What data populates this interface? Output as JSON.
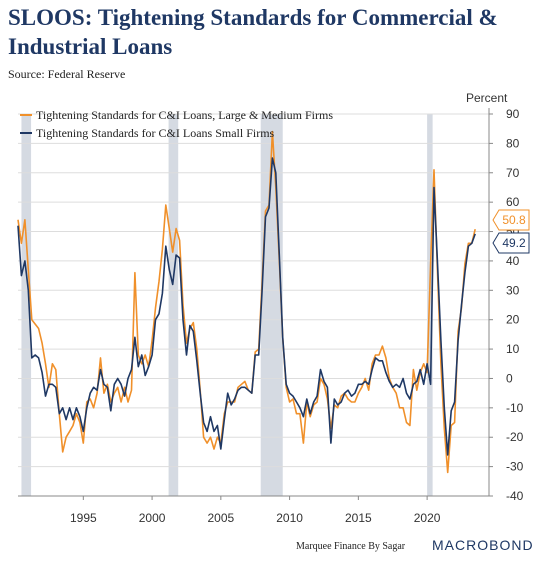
{
  "header": {
    "title": "SLOOS: Tightening Standards for Commercial & Industrial Loans",
    "source": "Source: Federal Reserve",
    "unit": "Percent"
  },
  "footer": {
    "credit": "Marquee Finance By Sagar",
    "brand": "MACROBOND"
  },
  "colors": {
    "large": "#f0902a",
    "small": "#1f3864",
    "recession": "#d5dae2",
    "grid": "#dddddd"
  },
  "chart_data": {
    "type": "line",
    "title": "SLOOS: Tightening Standards for Commercial & Industrial Loans",
    "ylabel": "Percent",
    "ylim": [
      -40,
      90
    ],
    "yticks": [
      90,
      80,
      70,
      60,
      50,
      40,
      30,
      20,
      10,
      0,
      -10,
      -20,
      -30,
      -40
    ],
    "xlim": [
      1990.25,
      2024.5
    ],
    "xticks": [
      1995,
      2000,
      2005,
      2010,
      2015,
      2020
    ],
    "legend": "top-left",
    "recessions": [
      [
        1990.5,
        1991.2
      ],
      [
        2001.2,
        2001.9
      ],
      [
        2007.9,
        2009.5
      ],
      [
        2020.0,
        2020.4
      ]
    ],
    "end_labels": [
      "50.8",
      "49.2"
    ],
    "series": [
      {
        "name": "Tightening Standards for C&I Loans, Large & Medium Firms",
        "color": "#f0902a",
        "points": [
          [
            1990.25,
            54
          ],
          [
            1990.5,
            46
          ],
          [
            1990.75,
            54
          ],
          [
            1991.0,
            37
          ],
          [
            1991.25,
            20
          ],
          [
            1991.75,
            17
          ],
          [
            1992.0,
            12
          ],
          [
            1992.25,
            5
          ],
          [
            1992.5,
            -3
          ],
          [
            1992.75,
            5
          ],
          [
            1993.0,
            3
          ],
          [
            1993.25,
            -12
          ],
          [
            1993.5,
            -25
          ],
          [
            1993.75,
            -20
          ],
          [
            1994.0,
            -18
          ],
          [
            1994.25,
            -16
          ],
          [
            1994.5,
            -12
          ],
          [
            1994.75,
            -15
          ],
          [
            1995.0,
            -22
          ],
          [
            1995.25,
            -8
          ],
          [
            1995.5,
            -7
          ],
          [
            1995.75,
            -10
          ],
          [
            1996.0,
            -5
          ],
          [
            1996.25,
            7
          ],
          [
            1996.5,
            -5
          ],
          [
            1996.75,
            -2
          ],
          [
            1997.0,
            -8
          ],
          [
            1997.25,
            -5
          ],
          [
            1997.5,
            -3
          ],
          [
            1997.75,
            -8
          ],
          [
            1998.0,
            -3
          ],
          [
            1998.25,
            -8
          ],
          [
            1998.5,
            -4
          ],
          [
            1998.75,
            36
          ],
          [
            1999.0,
            8
          ],
          [
            1999.25,
            5
          ],
          [
            1999.5,
            8
          ],
          [
            1999.75,
            4
          ],
          [
            2000.0,
            13
          ],
          [
            2000.25,
            24
          ],
          [
            2000.5,
            33
          ],
          [
            2000.75,
            44
          ],
          [
            2001.0,
            59
          ],
          [
            2001.25,
            51
          ],
          [
            2001.5,
            43
          ],
          [
            2001.75,
            51
          ],
          [
            2002.0,
            47
          ],
          [
            2002.25,
            25
          ],
          [
            2002.5,
            12
          ],
          [
            2002.75,
            17
          ],
          [
            2003.0,
            19
          ],
          [
            2003.25,
            10
          ],
          [
            2003.5,
            -4
          ],
          [
            2003.75,
            -20
          ],
          [
            2004.0,
            -22
          ],
          [
            2004.25,
            -20
          ],
          [
            2004.5,
            -24
          ],
          [
            2004.75,
            -20
          ],
          [
            2005.0,
            -22
          ],
          [
            2005.25,
            -12
          ],
          [
            2005.5,
            -8
          ],
          [
            2005.75,
            -8
          ],
          [
            2006.0,
            -8
          ],
          [
            2006.25,
            -3
          ],
          [
            2006.5,
            -2
          ],
          [
            2006.75,
            -1
          ],
          [
            2007.0,
            -4
          ],
          [
            2007.25,
            -5
          ],
          [
            2007.5,
            9
          ],
          [
            2007.75,
            10
          ],
          [
            2008.0,
            33
          ],
          [
            2008.25,
            57
          ],
          [
            2008.5,
            59
          ],
          [
            2008.75,
            84
          ],
          [
            2009.0,
            65
          ],
          [
            2009.25,
            40
          ],
          [
            2009.5,
            14
          ],
          [
            2009.75,
            -3
          ],
          [
            2010.0,
            -8
          ],
          [
            2010.25,
            -7
          ],
          [
            2010.5,
            -12
          ],
          [
            2010.75,
            -12
          ],
          [
            2011.0,
            -22
          ],
          [
            2011.25,
            -8
          ],
          [
            2011.5,
            -13
          ],
          [
            2011.75,
            -9
          ],
          [
            2012.0,
            -8
          ],
          [
            2012.25,
            0
          ],
          [
            2012.5,
            -2
          ],
          [
            2012.75,
            -7
          ],
          [
            2013.0,
            -17
          ],
          [
            2013.25,
            -9
          ],
          [
            2013.5,
            -10
          ],
          [
            2013.75,
            -6
          ],
          [
            2014.0,
            -5
          ],
          [
            2014.25,
            -7
          ],
          [
            2014.5,
            -8
          ],
          [
            2014.75,
            -8
          ],
          [
            2015.0,
            -5
          ],
          [
            2015.25,
            -3
          ],
          [
            2015.5,
            0
          ],
          [
            2015.75,
            -4
          ],
          [
            2016.0,
            5
          ],
          [
            2016.25,
            8
          ],
          [
            2016.5,
            8
          ],
          [
            2016.75,
            11
          ],
          [
            2017.0,
            7
          ],
          [
            2017.25,
            0
          ],
          [
            2017.5,
            -3
          ],
          [
            2017.75,
            -5
          ],
          [
            2018.0,
            -10
          ],
          [
            2018.25,
            -10
          ],
          [
            2018.5,
            -15
          ],
          [
            2018.75,
            -16
          ],
          [
            2019.0,
            3
          ],
          [
            2019.25,
            -4
          ],
          [
            2019.5,
            2
          ],
          [
            2019.75,
            5
          ],
          [
            2020.0,
            2
          ],
          [
            2020.25,
            39
          ],
          [
            2020.5,
            71
          ],
          [
            2020.75,
            37
          ],
          [
            2021.0,
            5
          ],
          [
            2021.25,
            -17
          ],
          [
            2021.5,
            -32
          ],
          [
            2021.75,
            -16
          ],
          [
            2022.0,
            -15
          ],
          [
            2022.25,
            16
          ],
          [
            2022.5,
            24
          ],
          [
            2022.75,
            39
          ],
          [
            2023.0,
            46
          ],
          [
            2023.25,
            46
          ],
          [
            2023.5,
            50.8
          ]
        ]
      },
      {
        "name": "Tightening Standards for C&I Loans Small Firms",
        "color": "#1f3864",
        "points": [
          [
            1990.25,
            52
          ],
          [
            1990.5,
            35
          ],
          [
            1990.75,
            40
          ],
          [
            1991.0,
            30
          ],
          [
            1991.25,
            7
          ],
          [
            1991.5,
            8
          ],
          [
            1991.75,
            7
          ],
          [
            1992.0,
            2
          ],
          [
            1992.25,
            -6
          ],
          [
            1992.5,
            -2
          ],
          [
            1992.75,
            -2
          ],
          [
            1993.0,
            -3
          ],
          [
            1993.25,
            -12
          ],
          [
            1993.5,
            -10
          ],
          [
            1993.75,
            -14
          ],
          [
            1994.0,
            -10
          ],
          [
            1994.25,
            -14
          ],
          [
            1994.5,
            -10
          ],
          [
            1994.75,
            -13
          ],
          [
            1995.0,
            -18
          ],
          [
            1995.25,
            -10
          ],
          [
            1995.5,
            -5
          ],
          [
            1995.75,
            -3
          ],
          [
            1996.0,
            -4
          ],
          [
            1996.25,
            3
          ],
          [
            1996.5,
            -2
          ],
          [
            1996.75,
            -3
          ],
          [
            1997.0,
            -11
          ],
          [
            1997.25,
            -2
          ],
          [
            1997.5,
            0
          ],
          [
            1997.75,
            -2
          ],
          [
            1998.0,
            -6
          ],
          [
            1998.25,
            0
          ],
          [
            1998.5,
            3
          ],
          [
            1998.75,
            14
          ],
          [
            1999.0,
            4
          ],
          [
            1999.25,
            8
          ],
          [
            1999.5,
            1
          ],
          [
            1999.75,
            4
          ],
          [
            2000.0,
            8
          ],
          [
            2000.25,
            20
          ],
          [
            2000.5,
            22
          ],
          [
            2000.75,
            29
          ],
          [
            2001.0,
            45
          ],
          [
            2001.25,
            37
          ],
          [
            2001.5,
            32
          ],
          [
            2001.75,
            42
          ],
          [
            2002.0,
            41
          ],
          [
            2002.25,
            20
          ],
          [
            2002.5,
            8
          ],
          [
            2002.75,
            18
          ],
          [
            2003.0,
            16
          ],
          [
            2003.25,
            6
          ],
          [
            2003.5,
            -5
          ],
          [
            2003.75,
            -15
          ],
          [
            2004.0,
            -18
          ],
          [
            2004.25,
            -13
          ],
          [
            2004.5,
            -18
          ],
          [
            2004.75,
            -16
          ],
          [
            2005.0,
            -24
          ],
          [
            2005.25,
            -14
          ],
          [
            2005.5,
            -5
          ],
          [
            2005.75,
            -9
          ],
          [
            2006.0,
            -7
          ],
          [
            2006.25,
            -4
          ],
          [
            2006.5,
            -3
          ],
          [
            2006.75,
            -3
          ],
          [
            2007.0,
            -4
          ],
          [
            2007.25,
            -5
          ],
          [
            2007.5,
            8
          ],
          [
            2007.75,
            8
          ],
          [
            2008.0,
            30
          ],
          [
            2008.25,
            55
          ],
          [
            2008.5,
            58
          ],
          [
            2008.75,
            75
          ],
          [
            2009.0,
            70
          ],
          [
            2009.25,
            42
          ],
          [
            2009.5,
            14
          ],
          [
            2009.75,
            -2
          ],
          [
            2010.0,
            -5
          ],
          [
            2010.25,
            -6
          ],
          [
            2010.5,
            -8
          ],
          [
            2010.75,
            -10
          ],
          [
            2011.0,
            -13
          ],
          [
            2011.25,
            -7
          ],
          [
            2011.5,
            -12
          ],
          [
            2011.75,
            -8
          ],
          [
            2012.0,
            -6
          ],
          [
            2012.25,
            3
          ],
          [
            2012.5,
            -1
          ],
          [
            2012.75,
            -3
          ],
          [
            2013.0,
            -22
          ],
          [
            2013.25,
            -7
          ],
          [
            2013.5,
            -9
          ],
          [
            2013.75,
            -8
          ],
          [
            2014.0,
            -5
          ],
          [
            2014.25,
            -4
          ],
          [
            2014.5,
            -6
          ],
          [
            2014.75,
            -5
          ],
          [
            2015.0,
            -2
          ],
          [
            2015.25,
            -2
          ],
          [
            2015.5,
            -1
          ],
          [
            2015.75,
            -2
          ],
          [
            2016.0,
            3
          ],
          [
            2016.25,
            7
          ],
          [
            2016.5,
            6
          ],
          [
            2016.75,
            6
          ],
          [
            2017.0,
            2
          ],
          [
            2017.25,
            -1
          ],
          [
            2017.5,
            -3
          ],
          [
            2017.75,
            -2
          ],
          [
            2018.0,
            -3
          ],
          [
            2018.25,
            0
          ],
          [
            2018.5,
            -5
          ],
          [
            2018.75,
            -7
          ],
          [
            2019.0,
            -2
          ],
          [
            2019.25,
            -1
          ],
          [
            2019.5,
            3
          ],
          [
            2019.75,
            -2
          ],
          [
            2020.0,
            5
          ],
          [
            2020.25,
            -2
          ],
          [
            2020.5,
            65
          ],
          [
            2020.75,
            40
          ],
          [
            2021.0,
            13
          ],
          [
            2021.25,
            -10
          ],
          [
            2021.5,
            -26
          ],
          [
            2021.75,
            -11
          ],
          [
            2022.0,
            -8
          ],
          [
            2022.25,
            13
          ],
          [
            2022.5,
            25
          ],
          [
            2022.75,
            36
          ],
          [
            2023.0,
            45
          ],
          [
            2023.25,
            46
          ],
          [
            2023.5,
            49.2
          ]
        ]
      }
    ]
  }
}
